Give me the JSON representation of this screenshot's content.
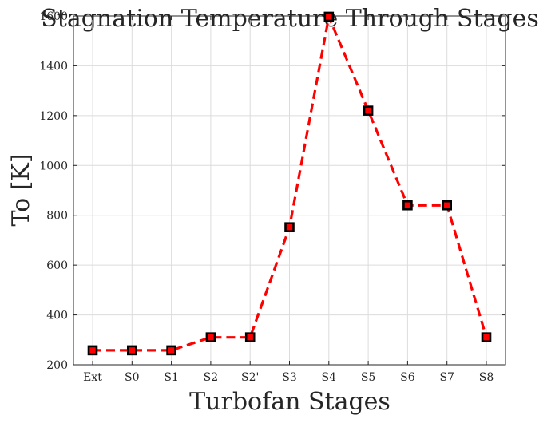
{
  "chart_data": {
    "type": "line",
    "title": "Stagnation Temperature Through Stages",
    "xlabel": "Turbofan Stages",
    "ylabel": "To [K]",
    "categories": [
      "Ext",
      "S0",
      "S1",
      "S2",
      "S2'",
      "S3",
      "S4",
      "S5",
      "S6",
      "S7",
      "S8"
    ],
    "series": [
      {
        "values": [
          258,
          258,
          258,
          310,
          310,
          752,
          1597,
          1220,
          840,
          840,
          310
        ],
        "color": "#ff0000",
        "line_style": "dashed",
        "marker": "square",
        "marker_edge_color": "#000000"
      }
    ],
    "ylim": [
      200,
      1600
    ],
    "yticks": [
      200,
      400,
      600,
      800,
      1000,
      1200,
      1400,
      1600
    ],
    "grid": true
  }
}
